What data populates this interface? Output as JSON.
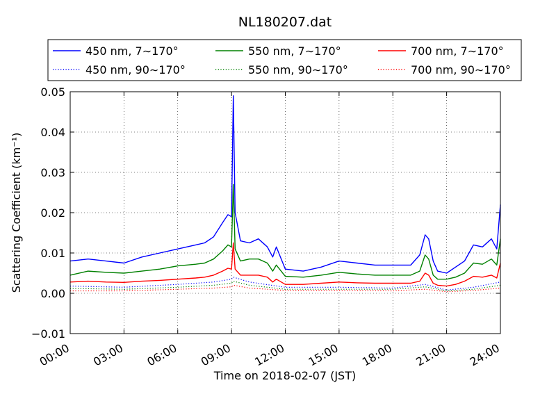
{
  "chart_data": {
    "type": "line",
    "title": "NL180207.dat",
    "xlabel": "Time on 2018-02-07 (JST)",
    "ylabel": "Scattering Coefficient (km⁻¹)",
    "xlim": [
      "00:00",
      "24:00"
    ],
    "ylim": [
      -0.01,
      0.05
    ],
    "grid": true,
    "legend_position": "top",
    "x_ticks": [
      "00:00",
      "03:00",
      "06:00",
      "09:00",
      "12:00",
      "15:00",
      "18:00",
      "21:00",
      "24:00"
    ],
    "y_ticks": [
      "−0.01",
      "0.00",
      "0.01",
      "0.02",
      "0.03",
      "0.04",
      "0.05"
    ],
    "y_tick_values": [
      -0.01,
      0,
      0.01,
      0.02,
      0.03,
      0.04,
      0.05
    ],
    "x_tick_hours": [
      0,
      3,
      6,
      9,
      12,
      15,
      18,
      21,
      24
    ],
    "series": [
      {
        "name": "450 nm, 7∼170°",
        "color": "#0000ff",
        "style": "solid",
        "x": [
          "00:00",
          "01:00",
          "02:00",
          "03:00",
          "04:00",
          "05:00",
          "06:00",
          "07:00",
          "07:30",
          "08:00",
          "08:30",
          "08:48",
          "09:00",
          "09:06",
          "09:12",
          "09:30",
          "10:00",
          "10:30",
          "11:00",
          "11:18",
          "11:30",
          "12:00",
          "13:00",
          "14:00",
          "15:00",
          "16:00",
          "17:00",
          "18:00",
          "18:30",
          "19:00",
          "19:30",
          "19:48",
          "20:00",
          "20:15",
          "20:30",
          "21:00",
          "21:30",
          "22:00",
          "22:30",
          "23:00",
          "23:30",
          "23:48",
          "24:00"
        ],
        "y": [
          0.008,
          0.0085,
          0.008,
          0.0075,
          0.009,
          0.01,
          0.011,
          0.012,
          0.0125,
          0.014,
          0.0175,
          0.0195,
          0.019,
          0.049,
          0.02,
          0.013,
          0.0125,
          0.0135,
          0.0115,
          0.009,
          0.0115,
          0.006,
          0.0055,
          0.0065,
          0.008,
          0.0075,
          0.007,
          0.007,
          0.007,
          0.007,
          0.0095,
          0.0145,
          0.0135,
          0.008,
          0.0055,
          0.005,
          0.0065,
          0.008,
          0.012,
          0.0115,
          0.0135,
          0.011,
          0.022
        ]
      },
      {
        "name": "450 nm, 90∼170°",
        "color": "#0000ff",
        "style": "dotted",
        "x": [
          "00:00",
          "03:00",
          "06:00",
          "08:00",
          "09:00",
          "09:06",
          "10:00",
          "12:00",
          "15:00",
          "18:00",
          "19:48",
          "21:00",
          "22:30",
          "24:00"
        ],
        "y": [
          0.0018,
          0.0015,
          0.0022,
          0.0028,
          0.0035,
          0.004,
          0.0028,
          0.0015,
          0.0015,
          0.0013,
          0.0022,
          0.0008,
          0.0015,
          0.0028
        ]
      },
      {
        "name": "550 nm, 7∼170°",
        "color": "#008000",
        "style": "solid",
        "x": [
          "00:00",
          "01:00",
          "02:00",
          "03:00",
          "04:00",
          "05:00",
          "06:00",
          "07:00",
          "07:30",
          "08:00",
          "08:30",
          "08:48",
          "09:00",
          "09:06",
          "09:12",
          "09:30",
          "10:00",
          "10:30",
          "11:00",
          "11:18",
          "11:30",
          "12:00",
          "13:00",
          "14:00",
          "15:00",
          "16:00",
          "17:00",
          "18:00",
          "18:30",
          "19:00",
          "19:30",
          "19:48",
          "20:00",
          "20:15",
          "20:30",
          "21:00",
          "21:30",
          "22:00",
          "22:30",
          "23:00",
          "23:30",
          "23:48",
          "24:00"
        ],
        "y": [
          0.0045,
          0.0055,
          0.0052,
          0.005,
          0.0055,
          0.006,
          0.0068,
          0.0072,
          0.0075,
          0.0085,
          0.0105,
          0.012,
          0.0115,
          0.027,
          0.011,
          0.008,
          0.0085,
          0.0085,
          0.0075,
          0.0055,
          0.007,
          0.0042,
          0.004,
          0.0045,
          0.0052,
          0.0048,
          0.0045,
          0.0045,
          0.0045,
          0.0045,
          0.0055,
          0.0095,
          0.0085,
          0.0045,
          0.0035,
          0.0035,
          0.004,
          0.005,
          0.0075,
          0.0072,
          0.0085,
          0.007,
          0.0135
        ]
      },
      {
        "name": "550 nm, 90∼170°",
        "color": "#008000",
        "style": "dotted",
        "x": [
          "00:00",
          "03:00",
          "06:00",
          "08:00",
          "09:00",
          "09:06",
          "10:00",
          "12:00",
          "15:00",
          "18:00",
          "19:48",
          "21:00",
          "22:30",
          "24:00"
        ],
        "y": [
          0.0012,
          0.001,
          0.0015,
          0.002,
          0.0025,
          0.003,
          0.002,
          0.001,
          0.001,
          0.001,
          0.0016,
          0.0006,
          0.001,
          0.002
        ]
      },
      {
        "name": "700 nm, 7∼170°",
        "color": "#ff0000",
        "style": "solid",
        "x": [
          "00:00",
          "01:00",
          "02:00",
          "03:00",
          "04:00",
          "05:00",
          "06:00",
          "07:00",
          "07:30",
          "08:00",
          "08:30",
          "08:48",
          "09:00",
          "09:06",
          "09:12",
          "09:30",
          "10:00",
          "10:30",
          "11:00",
          "11:18",
          "11:30",
          "12:00",
          "13:00",
          "14:00",
          "15:00",
          "16:00",
          "17:00",
          "18:00",
          "18:30",
          "19:00",
          "19:30",
          "19:48",
          "20:00",
          "20:15",
          "20:30",
          "21:00",
          "21:30",
          "22:00",
          "22:30",
          "23:00",
          "23:30",
          "23:48",
          "24:00"
        ],
        "y": [
          0.0028,
          0.003,
          0.0028,
          0.0027,
          0.003,
          0.0032,
          0.0035,
          0.0038,
          0.004,
          0.0045,
          0.0055,
          0.0062,
          0.006,
          0.0125,
          0.006,
          0.0045,
          0.0045,
          0.0045,
          0.004,
          0.0028,
          0.0035,
          0.0022,
          0.0022,
          0.0025,
          0.0028,
          0.0026,
          0.0025,
          0.0025,
          0.0025,
          0.0025,
          0.003,
          0.005,
          0.0045,
          0.0025,
          0.002,
          0.0018,
          0.0022,
          0.003,
          0.0042,
          0.004,
          0.0045,
          0.0038,
          0.0075
        ]
      },
      {
        "name": "700 nm, 90∼170°",
        "color": "#ff0000",
        "style": "dotted",
        "x": [
          "00:00",
          "03:00",
          "06:00",
          "08:00",
          "09:00",
          "09:06",
          "10:00",
          "12:00",
          "15:00",
          "18:00",
          "19:48",
          "21:00",
          "22:30",
          "24:00"
        ],
        "y": [
          0.0006,
          0.0006,
          0.001,
          0.0013,
          0.0016,
          0.002,
          0.0013,
          0.0007,
          0.0007,
          0.0006,
          0.001,
          0.0004,
          0.0007,
          0.0013
        ]
      }
    ]
  }
}
